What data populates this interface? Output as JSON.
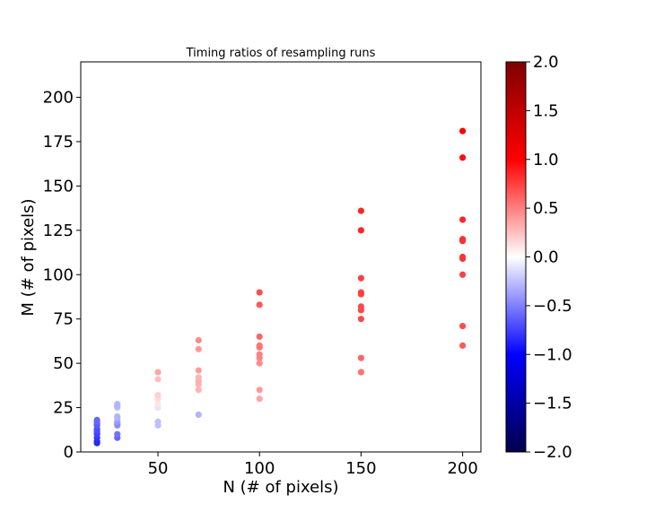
{
  "chart_data": {
    "type": "scatter",
    "title": "Timing ratios of resampling runs",
    "xlabel": "N (# of pixels)",
    "ylabel": "M (# of pixels)",
    "xlim": [
      12,
      209
    ],
    "ylim": [
      0,
      220
    ],
    "x_ticks": [
      50,
      100,
      150,
      200
    ],
    "y_ticks": [
      0,
      25,
      50,
      75,
      100,
      125,
      150,
      175,
      200
    ],
    "grid": false,
    "colorbar": {
      "colormap": "seismic",
      "range": [
        -2.0,
        2.0
      ],
      "ticks": [
        -2.0,
        -1.5,
        -1.0,
        -0.5,
        0.0,
        0.5,
        1.0,
        1.5,
        2.0
      ],
      "tick_labels": [
        "−2.0",
        "−1.5",
        "−1.0",
        "−0.5",
        "0.0",
        "0.5",
        "1.0",
        "1.5",
        "2.0"
      ]
    },
    "points": [
      {
        "x": 20,
        "y": 5,
        "c": -0.85
      },
      {
        "x": 20,
        "y": 6,
        "c": -0.85
      },
      {
        "x": 20,
        "y": 8,
        "c": -0.8
      },
      {
        "x": 20,
        "y": 10,
        "c": -0.75
      },
      {
        "x": 20,
        "y": 11,
        "c": -0.75
      },
      {
        "x": 20,
        "y": 12,
        "c": -0.7
      },
      {
        "x": 20,
        "y": 13,
        "c": -0.7
      },
      {
        "x": 20,
        "y": 15,
        "c": -0.65
      },
      {
        "x": 20,
        "y": 16,
        "c": -0.65
      },
      {
        "x": 20,
        "y": 17,
        "c": -0.6
      },
      {
        "x": 20,
        "y": 18,
        "c": -0.6
      },
      {
        "x": 30,
        "y": 8,
        "c": -0.6
      },
      {
        "x": 30,
        "y": 10,
        "c": -0.55
      },
      {
        "x": 30,
        "y": 15,
        "c": -0.45
      },
      {
        "x": 30,
        "y": 16,
        "c": -0.45
      },
      {
        "x": 30,
        "y": 17,
        "c": -0.4
      },
      {
        "x": 30,
        "y": 19,
        "c": -0.3
      },
      {
        "x": 30,
        "y": 20,
        "c": -0.3
      },
      {
        "x": 30,
        "y": 25,
        "c": -0.25
      },
      {
        "x": 30,
        "y": 26,
        "c": -0.3
      },
      {
        "x": 30,
        "y": 27,
        "c": -0.3
      },
      {
        "x": 50,
        "y": 15,
        "c": -0.25
      },
      {
        "x": 50,
        "y": 17,
        "c": -0.25
      },
      {
        "x": 50,
        "y": 25,
        "c": -0.1
      },
      {
        "x": 50,
        "y": 27,
        "c": 0.1
      },
      {
        "x": 50,
        "y": 30,
        "c": 0.15
      },
      {
        "x": 50,
        "y": 32,
        "c": 0.18
      },
      {
        "x": 50,
        "y": 41,
        "c": 0.25
      },
      {
        "x": 50,
        "y": 45,
        "c": 0.35
      },
      {
        "x": 70,
        "y": 21,
        "c": -0.3
      },
      {
        "x": 70,
        "y": 35,
        "c": 0.3
      },
      {
        "x": 70,
        "y": 38,
        "c": 0.3
      },
      {
        "x": 70,
        "y": 40,
        "c": 0.32
      },
      {
        "x": 70,
        "y": 42,
        "c": 0.3
      },
      {
        "x": 70,
        "y": 46,
        "c": 0.38
      },
      {
        "x": 70,
        "y": 58,
        "c": 0.4
      },
      {
        "x": 70,
        "y": 63,
        "c": 0.45
      },
      {
        "x": 100,
        "y": 30,
        "c": 0.35
      },
      {
        "x": 100,
        "y": 35,
        "c": 0.4
      },
      {
        "x": 100,
        "y": 50,
        "c": 0.45
      },
      {
        "x": 100,
        "y": 53,
        "c": 0.48
      },
      {
        "x": 100,
        "y": 55,
        "c": 0.5
      },
      {
        "x": 100,
        "y": 59,
        "c": 0.55
      },
      {
        "x": 100,
        "y": 60,
        "c": 0.55
      },
      {
        "x": 100,
        "y": 65,
        "c": 0.6
      },
      {
        "x": 100,
        "y": 83,
        "c": 0.65
      },
      {
        "x": 100,
        "y": 90,
        "c": 0.7
      },
      {
        "x": 150,
        "y": 45,
        "c": 0.55
      },
      {
        "x": 150,
        "y": 53,
        "c": 0.6
      },
      {
        "x": 150,
        "y": 75,
        "c": 0.7
      },
      {
        "x": 150,
        "y": 80,
        "c": 0.72
      },
      {
        "x": 150,
        "y": 82,
        "c": 0.72
      },
      {
        "x": 150,
        "y": 89,
        "c": 0.75
      },
      {
        "x": 150,
        "y": 90,
        "c": 0.75
      },
      {
        "x": 150,
        "y": 98,
        "c": 0.75
      },
      {
        "x": 150,
        "y": 125,
        "c": 0.85
      },
      {
        "x": 150,
        "y": 136,
        "c": 0.85
      },
      {
        "x": 200,
        "y": 60,
        "c": 0.65
      },
      {
        "x": 200,
        "y": 71,
        "c": 0.7
      },
      {
        "x": 200,
        "y": 100,
        "c": 0.75
      },
      {
        "x": 200,
        "y": 109,
        "c": 0.8
      },
      {
        "x": 200,
        "y": 110,
        "c": 0.8
      },
      {
        "x": 200,
        "y": 119,
        "c": 0.82
      },
      {
        "x": 200,
        "y": 120,
        "c": 0.82
      },
      {
        "x": 200,
        "y": 131,
        "c": 0.85
      },
      {
        "x": 200,
        "y": 166,
        "c": 0.95
      },
      {
        "x": 200,
        "y": 181,
        "c": 1.0
      }
    ]
  }
}
